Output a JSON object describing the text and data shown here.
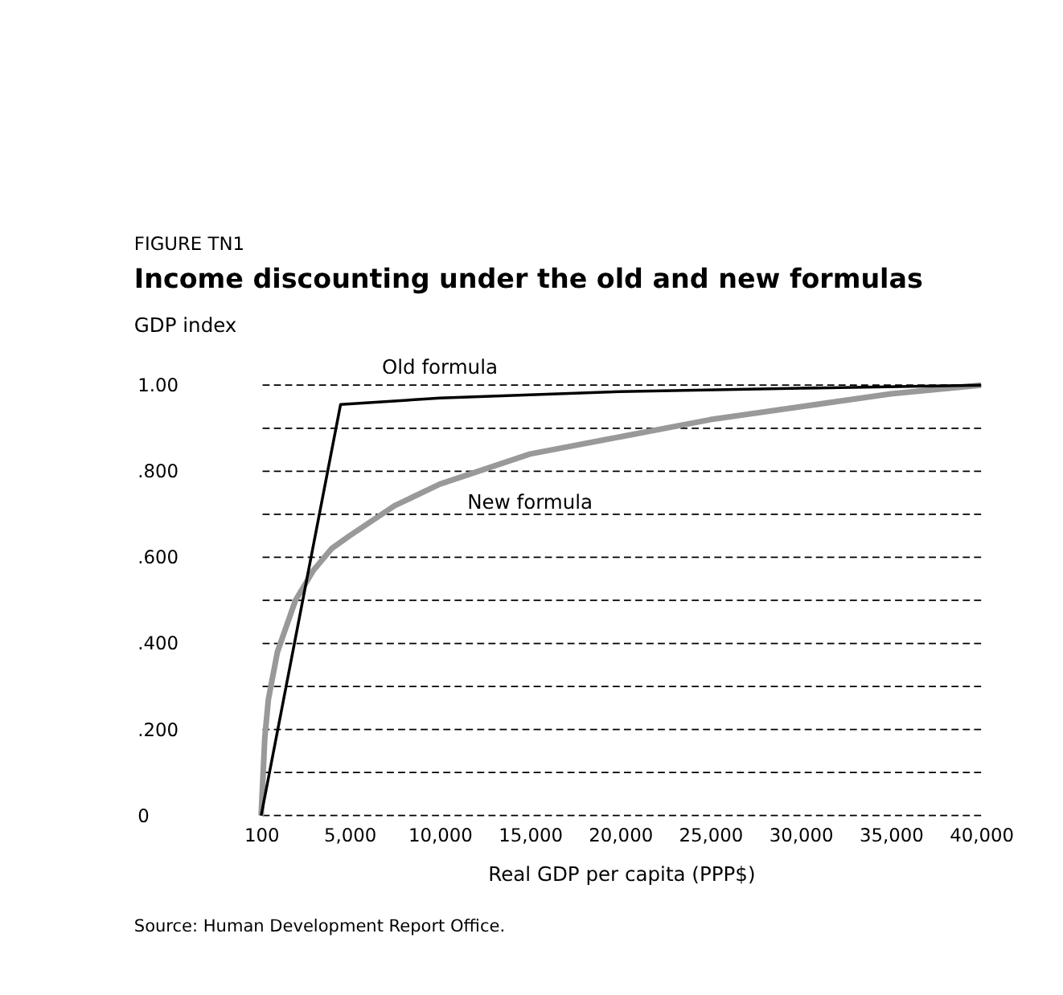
{
  "chart_data": {
    "type": "line",
    "title": "Income discounting under the old and new formulas",
    "subtitle": "FIGURE TN1",
    "xlabel": "Real GDP per capita (PPP$)",
    "ylabel": "GDP index",
    "annotations": [
      "Source: Human Development Report Office."
    ],
    "series": [
      {
        "name": "Old formula",
        "color": "#000000",
        "x": [
          100,
          4500,
          10000,
          20000,
          30000,
          40000
        ],
        "values": [
          0,
          0.955,
          0.97,
          0.985,
          0.993,
          1.0
        ]
      },
      {
        "name": "New formula",
        "color": "#999999",
        "x": [
          100,
          300,
          500,
          1000,
          2000,
          3000,
          4000,
          5000,
          7500,
          10000,
          15000,
          20000,
          25000,
          30000,
          35000,
          40000
        ],
        "values": [
          0,
          0.18,
          0.27,
          0.38,
          0.5,
          0.57,
          0.62,
          0.65,
          0.72,
          0.77,
          0.84,
          0.88,
          0.92,
          0.95,
          0.98,
          1.0
        ]
      }
    ],
    "xlim": [
      100,
      40000
    ],
    "ylim": [
      0,
      1.0
    ],
    "xticks": [
      100,
      {
        "value": 5000,
        "label": "5,000"
      },
      {
        "value": 10000,
        "label": "10,000"
      },
      {
        "value": 15000,
        "label": "15,000"
      },
      {
        "value": 20000,
        "label": "20,000"
      },
      {
        "value": 25000,
        "label": "25,000"
      },
      {
        "value": 30000,
        "label": "30,000"
      },
      {
        "value": 35000,
        "label": "35,000"
      },
      {
        "value": 40000,
        "label": "40,000"
      }
    ],
    "yticks": [
      0,
      {
        "value": 0.1,
        "label": null
      },
      {
        "value": 0.2,
        "label": ".200"
      },
      {
        "value": 0.3,
        "label": null
      },
      {
        "value": 0.4,
        "label": ".400"
      },
      {
        "value": 0.5,
        "label": null
      },
      {
        "value": 0.6,
        "label": ".600"
      },
      {
        "value": 0.7,
        "label": null
      },
      {
        "value": 0.8,
        "label": ".800"
      },
      {
        "value": 0.9,
        "label": null
      },
      {
        "value": 1.0,
        "label": "1.00"
      }
    ],
    "grid": "y",
    "marker": "none",
    "line_style": "solid"
  }
}
